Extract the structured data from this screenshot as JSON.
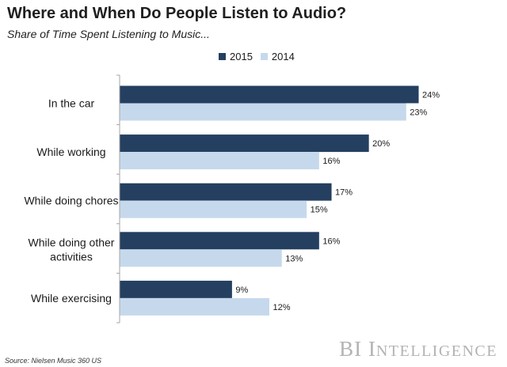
{
  "chart_data": {
    "type": "bar",
    "orientation": "horizontal",
    "title": "Where and When Do People Listen to Audio?",
    "subtitle": "Share of Time Spent Listening to Music...",
    "categories": [
      "In the car",
      "While working",
      "While doing chores",
      "While doing other activities",
      "While exercising"
    ],
    "category_lines": [
      [
        "In the car"
      ],
      [
        "While working"
      ],
      [
        "While doing chores"
      ],
      [
        "While doing other",
        "activities"
      ],
      [
        "While exercising"
      ]
    ],
    "series": [
      {
        "name": "2015",
        "values": [
          24,
          20,
          17,
          16,
          9
        ],
        "labels": [
          "24%",
          "20%",
          "17%",
          "16%",
          "9%"
        ],
        "color": "#243f60"
      },
      {
        "name": "2014",
        "values": [
          23,
          16,
          15,
          13,
          12
        ],
        "labels": [
          "23%",
          "16%",
          "15%",
          "13%",
          "12%"
        ],
        "color": "#c6d9ec"
      }
    ],
    "xlim": [
      0,
      24
    ],
    "grid": false,
    "legend_position": "top-center",
    "axis_color": "#a6a6a6"
  },
  "footer": {
    "source": "Source: Nielsen Music 360 US",
    "logo_main": "BI ",
    "logo_cap": "I",
    "logo_small": "NTELLIGENCE"
  }
}
